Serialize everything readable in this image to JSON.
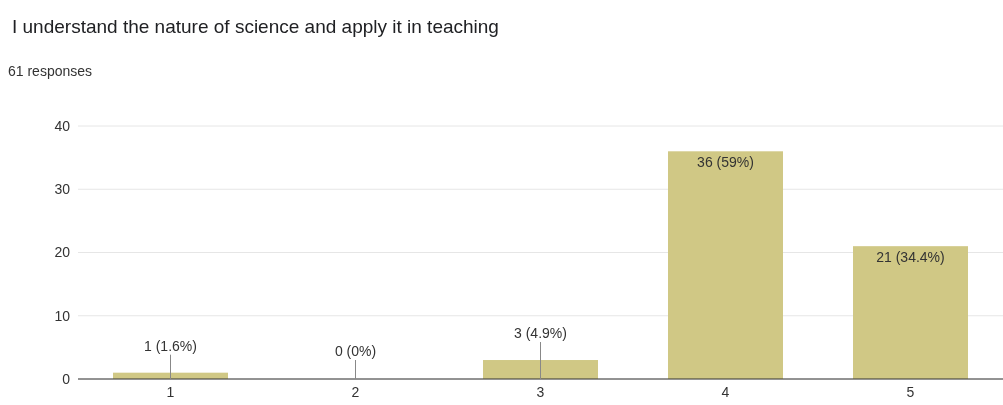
{
  "chart_data": {
    "type": "bar",
    "title": "I understand the nature of science and apply it in teaching",
    "subtitle": "61 responses",
    "categories": [
      "1",
      "2",
      "3",
      "4",
      "5"
    ],
    "values": [
      1,
      0,
      3,
      36,
      21
    ],
    "value_labels": [
      "1 (1.6%)",
      "0 (0%)",
      "3 (4.9%)",
      "36 (59%)",
      "21 (34.4%)"
    ],
    "color": "#d0c885",
    "ylim": [
      0,
      40
    ],
    "yticks": [
      0,
      10,
      20,
      30,
      40
    ],
    "grid": "y"
  }
}
